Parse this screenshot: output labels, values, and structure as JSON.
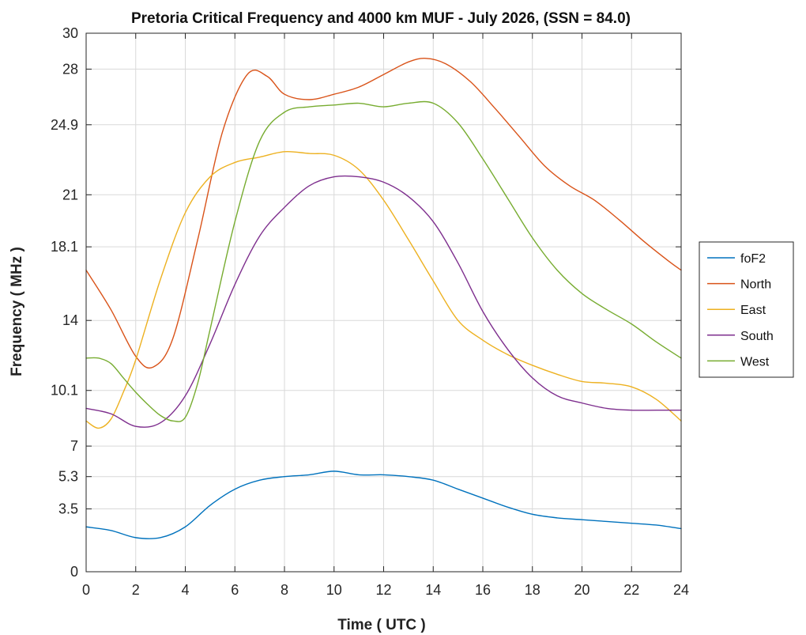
{
  "chart_data": {
    "type": "line",
    "title": "Pretoria Critical Frequency and 4000 km MUF - July 2026, (SSN = 84.0)",
    "xlabel": "Time ( UTC )",
    "ylabel": "Frequency ( MHz )",
    "xlim": [
      0,
      24
    ],
    "ylim": [
      0,
      30
    ],
    "xticks": [
      0,
      2,
      4,
      6,
      8,
      10,
      12,
      14,
      16,
      18,
      20,
      22,
      24
    ],
    "xtick_labels": [
      "0",
      "2",
      "4",
      "6",
      "8",
      "10",
      "12",
      "14",
      "16",
      "18",
      "20",
      "22",
      "24"
    ],
    "yticks": [
      0,
      3.5,
      5.3,
      7,
      10.1,
      14,
      18.1,
      21,
      24.9,
      28,
      30
    ],
    "ytick_labels": [
      "0",
      "3.5",
      "5.3",
      "7",
      "10.1",
      "14",
      "18.1",
      "21",
      "24.9",
      "28",
      "30"
    ],
    "grid": true,
    "legend_position": "outside-right",
    "series": [
      {
        "name": "foF2",
        "color": "#0072bd",
        "x": [
          0,
          1,
          2,
          3,
          4,
          5,
          6,
          7,
          8,
          9,
          10,
          11,
          12,
          13,
          14,
          15,
          16,
          17,
          18,
          19,
          20,
          21,
          22,
          23,
          24
        ],
        "y": [
          2.5,
          2.3,
          1.9,
          1.9,
          2.5,
          3.7,
          4.6,
          5.1,
          5.3,
          5.4,
          5.6,
          5.4,
          5.4,
          5.3,
          5.1,
          4.6,
          4.1,
          3.6,
          3.2,
          3.0,
          2.9,
          2.8,
          2.7,
          2.6,
          2.4
        ]
      },
      {
        "name": "North",
        "color": "#d95319",
        "x": [
          0,
          1,
          2,
          2.7,
          3.5,
          4.5,
          5.5,
          6.5,
          7.3,
          8,
          9,
          10,
          11,
          12,
          13,
          13.7,
          14.5,
          15.5,
          16.5,
          17.5,
          18.5,
          19.5,
          20.5,
          21.5,
          22.5,
          23.5,
          24
        ],
        "y": [
          16.8,
          14.6,
          12.0,
          11.4,
          13.0,
          18.5,
          24.5,
          27.7,
          27.6,
          26.6,
          26.3,
          26.6,
          27.0,
          27.7,
          28.4,
          28.6,
          28.3,
          27.3,
          25.8,
          24.2,
          22.6,
          21.5,
          20.7,
          19.6,
          18.4,
          17.3,
          16.8
        ]
      },
      {
        "name": "East",
        "color": "#edb120",
        "x": [
          0,
          0.5,
          1,
          1.5,
          2,
          3,
          4,
          5,
          6,
          7,
          8,
          9,
          10,
          11,
          12,
          13,
          14,
          15,
          16,
          17,
          18,
          19,
          20,
          21,
          22,
          23,
          24
        ],
        "y": [
          8.4,
          8.0,
          8.5,
          10.0,
          11.8,
          16.3,
          20.0,
          22.0,
          22.8,
          23.1,
          23.4,
          23.3,
          23.2,
          22.4,
          20.7,
          18.5,
          16.2,
          14.0,
          12.9,
          12.1,
          11.5,
          11.0,
          10.6,
          10.5,
          10.3,
          9.6,
          8.4
        ]
      },
      {
        "name": "South",
        "color": "#7e2f8e",
        "x": [
          0,
          1,
          2,
          3,
          4,
          5,
          6,
          7,
          8,
          9,
          10,
          11,
          12,
          13,
          14,
          15,
          16,
          17,
          18,
          19,
          20,
          21,
          22,
          23,
          24
        ],
        "y": [
          9.1,
          8.8,
          8.1,
          8.3,
          9.8,
          12.7,
          16.0,
          18.7,
          20.3,
          21.5,
          22.0,
          22.0,
          21.7,
          20.9,
          19.5,
          17.2,
          14.5,
          12.4,
          10.8,
          9.8,
          9.4,
          9.1,
          9.0,
          9.0,
          9.0
        ]
      },
      {
        "name": "West",
        "color": "#77ac30",
        "x": [
          0,
          0.5,
          1,
          1.5,
          2,
          2.5,
          3,
          3.5,
          4,
          4.5,
          5,
          6,
          7,
          8,
          9,
          10,
          11,
          12,
          13,
          14,
          15,
          16,
          17,
          18,
          19,
          20,
          21,
          22,
          23,
          24
        ],
        "y": [
          11.9,
          11.9,
          11.6,
          10.8,
          10.0,
          9.3,
          8.7,
          8.4,
          8.6,
          10.5,
          13.5,
          19.5,
          24.0,
          25.6,
          25.9,
          26.0,
          26.1,
          25.9,
          26.1,
          26.1,
          25.0,
          23.0,
          20.8,
          18.6,
          16.8,
          15.5,
          14.6,
          13.8,
          12.8,
          11.9
        ]
      }
    ]
  }
}
